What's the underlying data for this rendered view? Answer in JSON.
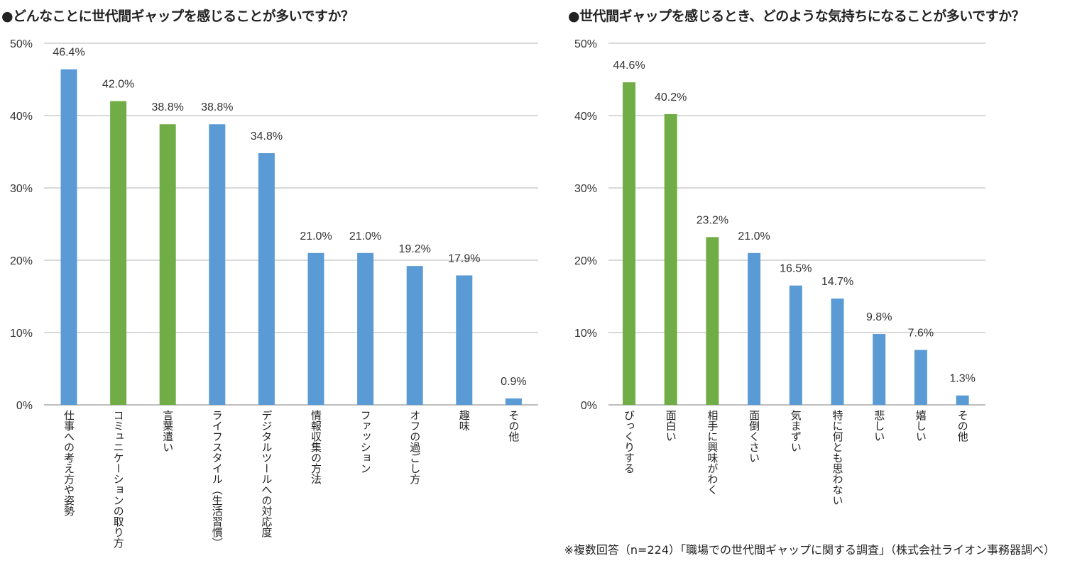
{
  "chart_data": [
    {
      "type": "bar",
      "title": "●どんなことに世代間ギャップを感じることが多いですか？",
      "categories": [
        "仕事への考え方や姿勢",
        "コミュニケーションの取り方",
        "言葉遣い",
        "ライフスタイル（生活習慣）",
        "デジタルツールへの対応度",
        "情報収集の方法",
        "ファッション",
        "オフの過ごし方",
        "趣味",
        "その他"
      ],
      "values": [
        46.4,
        42.0,
        38.8,
        38.8,
        34.8,
        21.0,
        21.0,
        19.2,
        17.9,
        0.9
      ],
      "data_labels": [
        "46.4%",
        "42.0%",
        "38.8%",
        "38.8%",
        "34.8%",
        "21.0%",
        "21.0%",
        "19.2%",
        "17.9%",
        "0.9%"
      ],
      "bar_colors": [
        "#5b9bd5",
        "#70ad47",
        "#70ad47",
        "#5b9bd5",
        "#5b9bd5",
        "#5b9bd5",
        "#5b9bd5",
        "#5b9bd5",
        "#5b9bd5",
        "#5b9bd5"
      ],
      "ylim": [
        0,
        50
      ],
      "yticks": [
        0,
        10,
        20,
        30,
        40,
        50
      ],
      "ytick_labels": [
        "0%",
        "10%",
        "20%",
        "30%",
        "40%",
        "50%"
      ],
      "grid": true
    },
    {
      "type": "bar",
      "title": "●世代間ギャップを感じるとき、どのような気持ちになることが多いですか？",
      "categories": [
        "びっくりする",
        "面白い",
        "相手に興味がわく",
        "面倒くさい",
        "気まずい",
        "特に何とも思わない",
        "悲しい",
        "嬉しい",
        "その他"
      ],
      "values": [
        44.6,
        40.2,
        23.2,
        21.0,
        16.5,
        14.7,
        9.8,
        7.6,
        1.3
      ],
      "data_labels": [
        "44.6%",
        "40.2%",
        "23.2%",
        "21.0%",
        "16.5%",
        "14.7%",
        "9.8%",
        "7.6%",
        "1.3%"
      ],
      "bar_colors": [
        "#70ad47",
        "#70ad47",
        "#70ad47",
        "#5b9bd5",
        "#5b9bd5",
        "#5b9bd5",
        "#5b9bd5",
        "#5b9bd5",
        "#5b9bd5"
      ],
      "ylim": [
        0,
        50
      ],
      "yticks": [
        0,
        10,
        20,
        30,
        40,
        50
      ],
      "ytick_labels": [
        "0%",
        "10%",
        "20%",
        "30%",
        "40%",
        "50%"
      ],
      "grid": true
    }
  ],
  "footnote": "※複数回答（n=224）「職場での世代間ギャップに関する調査」（株式会社ライオン事務器調べ）",
  "colors": {
    "blue": "#5b9bd5",
    "green": "#70ad47",
    "grid": "#d9d9d9",
    "axis": "#bfbfbf"
  }
}
